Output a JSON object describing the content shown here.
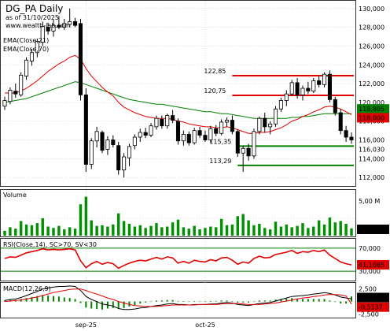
{
  "title": "DG_PA Daily",
  "as_of": "as of 31/10/2025",
  "watermark": "www.wealth-lab.com",
  "indicators": {
    "ema21": "EMA(Close,21)",
    "ema70": "EMA(Close,70)",
    "volume": "Volume",
    "rsi": "RSI(Close,14), SC>70, SV<30",
    "macd": "MACD(12,26,9)"
  },
  "colors": {
    "up": "#ffffff",
    "down": "#000000",
    "ema21": "#e00000",
    "ema70": "#008000",
    "volume": "#009000",
    "rsi": "#e00000",
    "resistance": "#e00000",
    "support": "#008000",
    "macd": "#000000",
    "macd_signal": "#e00000",
    "histogram": "#008000"
  },
  "price_axis": {
    "min": 111.6,
    "max": 130.4,
    "ticks": [
      "112,000",
      "114,000",
      "116,000",
      "118,000",
      "120,000",
      "122,000",
      "124,000",
      "126,000",
      "128,000",
      "130,000"
    ]
  },
  "level_lines": [
    {
      "label": "122,85",
      "value": 122.85,
      "color": "#e00000"
    },
    {
      "label": "120,75",
      "value": 120.75,
      "color": "#e00000"
    },
    {
      "label": "115,35",
      "value": 115.35,
      "color": "#008000"
    },
    {
      "label": "113,29",
      "value": 113.29,
      "color": "#008000"
    }
  ],
  "last_badges": {
    "close": "116,030",
    "ema70": "118,805",
    "ema21": "118,000",
    "volume": "1,05 M",
    "rsi": "41,1085",
    "macd": "0,5108",
    "signal": "-0,5137"
  },
  "volume_axis": {
    "ticks": [
      "5,00 M",
      "2,50 M"
    ]
  },
  "rsi_axis": {
    "ticks": [
      "70,000",
      "30,000"
    ]
  },
  "macd_axis": {
    "ticks": [
      "2,500",
      "-2,500"
    ]
  },
  "x_axis": {
    "labels": [
      "sep-25",
      "oct-25"
    ]
  },
  "chart_data": {
    "type": "candlestick",
    "candles": [
      {
        "o": 119.6,
        "h": 120.6,
        "l": 119.2,
        "c": 120.2,
        "v": 0.7
      },
      {
        "o": 120.1,
        "h": 121.6,
        "l": 119.8,
        "c": 121.3,
        "v": 1.2
      },
      {
        "o": 121.2,
        "h": 122.0,
        "l": 120.5,
        "c": 120.9,
        "v": 1.0
      },
      {
        "o": 120.8,
        "h": 123.2,
        "l": 120.6,
        "c": 122.9,
        "v": 2.1
      },
      {
        "o": 122.8,
        "h": 124.8,
        "l": 122.4,
        "c": 124.5,
        "v": 1.6
      },
      {
        "o": 124.4,
        "h": 125.7,
        "l": 123.9,
        "c": 125.3,
        "v": 1.5
      },
      {
        "o": 125.3,
        "h": 126.8,
        "l": 124.8,
        "c": 126.5,
        "v": 1.8
      },
      {
        "o": 126.4,
        "h": 128.6,
        "l": 126.0,
        "c": 128.1,
        "v": 2.5
      },
      {
        "o": 128.0,
        "h": 128.5,
        "l": 127.2,
        "c": 127.6,
        "v": 1.3
      },
      {
        "o": 127.6,
        "h": 128.8,
        "l": 127.0,
        "c": 128.2,
        "v": 1.1
      },
      {
        "o": 128.2,
        "h": 129.2,
        "l": 127.8,
        "c": 128.0,
        "v": 1.4
      },
      {
        "o": 128.0,
        "h": 128.9,
        "l": 127.7,
        "c": 128.4,
        "v": 0.9
      },
      {
        "o": 128.3,
        "h": 130.0,
        "l": 128.0,
        "c": 128.6,
        "v": 1.2
      },
      {
        "o": 128.6,
        "h": 129.0,
        "l": 128.0,
        "c": 128.2,
        "v": 1.0
      },
      {
        "o": 128.4,
        "h": 128.9,
        "l": 120.2,
        "c": 120.8,
        "v": 4.5
      },
      {
        "o": 120.8,
        "h": 121.5,
        "l": 112.6,
        "c": 113.4,
        "v": 5.6
      },
      {
        "o": 113.4,
        "h": 116.2,
        "l": 112.9,
        "c": 115.9,
        "v": 2.2
      },
      {
        "o": 115.9,
        "h": 117.4,
        "l": 115.2,
        "c": 116.9,
        "v": 1.4
      },
      {
        "o": 116.8,
        "h": 117.0,
        "l": 114.6,
        "c": 114.9,
        "v": 1.5
      },
      {
        "o": 115.0,
        "h": 116.4,
        "l": 114.4,
        "c": 116.0,
        "v": 1.3
      },
      {
        "o": 116.0,
        "h": 116.5,
        "l": 115.2,
        "c": 115.5,
        "v": 1.6
      },
      {
        "o": 115.4,
        "h": 115.8,
        "l": 112.3,
        "c": 112.8,
        "v": 3.2
      },
      {
        "o": 112.8,
        "h": 114.6,
        "l": 112.0,
        "c": 114.2,
        "v": 2.1
      },
      {
        "o": 114.1,
        "h": 115.6,
        "l": 113.2,
        "c": 115.3,
        "v": 1.7
      },
      {
        "o": 115.4,
        "h": 116.6,
        "l": 115.0,
        "c": 116.3,
        "v": 1.3
      },
      {
        "o": 116.3,
        "h": 117.2,
        "l": 115.8,
        "c": 116.8,
        "v": 1.5
      },
      {
        "o": 116.8,
        "h": 117.3,
        "l": 116.2,
        "c": 116.5,
        "v": 1.1
      },
      {
        "o": 116.5,
        "h": 117.8,
        "l": 116.3,
        "c": 117.5,
        "v": 1.4
      },
      {
        "o": 117.4,
        "h": 118.6,
        "l": 117.1,
        "c": 118.3,
        "v": 1.8
      },
      {
        "o": 118.2,
        "h": 118.6,
        "l": 117.2,
        "c": 117.5,
        "v": 1.2
      },
      {
        "o": 117.5,
        "h": 118.8,
        "l": 117.2,
        "c": 118.6,
        "v": 1.3
      },
      {
        "o": 118.6,
        "h": 119.2,
        "l": 117.8,
        "c": 118.1,
        "v": 1.9
      },
      {
        "o": 118.0,
        "h": 118.3,
        "l": 115.5,
        "c": 115.9,
        "v": 2.3
      },
      {
        "o": 115.9,
        "h": 117.0,
        "l": 115.4,
        "c": 116.6,
        "v": 1.2
      },
      {
        "o": 116.6,
        "h": 116.9,
        "l": 115.4,
        "c": 115.7,
        "v": 1.0
      },
      {
        "o": 115.7,
        "h": 117.3,
        "l": 115.5,
        "c": 117.0,
        "v": 1.4
      },
      {
        "o": 117.0,
        "h": 117.4,
        "l": 116.2,
        "c": 116.5,
        "v": 0.9
      },
      {
        "o": 116.5,
        "h": 117.0,
        "l": 115.8,
        "c": 116.0,
        "v": 1.1
      },
      {
        "o": 116.0,
        "h": 117.5,
        "l": 115.7,
        "c": 117.2,
        "v": 1.3
      },
      {
        "o": 117.2,
        "h": 117.6,
        "l": 116.4,
        "c": 116.7,
        "v": 1.2
      },
      {
        "o": 116.7,
        "h": 118.2,
        "l": 116.5,
        "c": 117.9,
        "v": 2.4
      },
      {
        "o": 117.9,
        "h": 118.4,
        "l": 117.4,
        "c": 118.1,
        "v": 1.5
      },
      {
        "o": 118.1,
        "h": 118.6,
        "l": 116.6,
        "c": 116.9,
        "v": 1.6
      },
      {
        "o": 116.9,
        "h": 117.1,
        "l": 114.2,
        "c": 114.6,
        "v": 2.8
      },
      {
        "o": 114.6,
        "h": 115.4,
        "l": 112.6,
        "c": 115.1,
        "v": 3.1
      },
      {
        "o": 115.1,
        "h": 115.6,
        "l": 113.8,
        "c": 114.3,
        "v": 2.2
      },
      {
        "o": 114.3,
        "h": 117.2,
        "l": 114.0,
        "c": 116.9,
        "v": 1.5
      },
      {
        "o": 116.9,
        "h": 118.5,
        "l": 116.6,
        "c": 118.3,
        "v": 1.7
      },
      {
        "o": 118.3,
        "h": 118.9,
        "l": 116.8,
        "c": 117.4,
        "v": 1.1
      },
      {
        "o": 117.4,
        "h": 118.0,
        "l": 116.6,
        "c": 117.7,
        "v": 0.9
      },
      {
        "o": 117.7,
        "h": 119.6,
        "l": 117.4,
        "c": 119.3,
        "v": 2.0
      },
      {
        "o": 119.3,
        "h": 120.5,
        "l": 119.0,
        "c": 120.2,
        "v": 1.3
      },
      {
        "o": 120.2,
        "h": 121.3,
        "l": 119.6,
        "c": 120.9,
        "v": 1.6
      },
      {
        "o": 120.9,
        "h": 122.4,
        "l": 120.7,
        "c": 122.1,
        "v": 1.2
      },
      {
        "o": 122.1,
        "h": 122.6,
        "l": 120.4,
        "c": 120.8,
        "v": 1.4
      },
      {
        "o": 120.8,
        "h": 121.8,
        "l": 120.2,
        "c": 121.5,
        "v": 1.8
      },
      {
        "o": 121.5,
        "h": 122.2,
        "l": 120.9,
        "c": 121.2,
        "v": 1.1
      },
      {
        "o": 121.2,
        "h": 122.6,
        "l": 121.0,
        "c": 122.3,
        "v": 1.3
      },
      {
        "o": 122.3,
        "h": 122.8,
        "l": 121.6,
        "c": 121.9,
        "v": 2.2
      },
      {
        "o": 121.9,
        "h": 123.2,
        "l": 121.6,
        "c": 123.0,
        "v": 1.6
      },
      {
        "o": 123.0,
        "h": 123.4,
        "l": 120.0,
        "c": 120.3,
        "v": 2.6
      },
      {
        "o": 120.3,
        "h": 120.6,
        "l": 118.6,
        "c": 118.9,
        "v": 1.9
      },
      {
        "o": 118.9,
        "h": 119.3,
        "l": 116.6,
        "c": 117.0,
        "v": 2.1
      },
      {
        "o": 117.0,
        "h": 117.5,
        "l": 115.8,
        "c": 116.3,
        "v": 1.7
      },
      {
        "o": 116.3,
        "h": 116.8,
        "l": 115.6,
        "c": 116.0,
        "v": 1.05
      }
    ],
    "ema21": [
      121.0,
      121.0,
      121.0,
      121.2,
      121.5,
      121.9,
      122.3,
      122.8,
      123.3,
      123.7,
      124.1,
      124.4,
      124.8,
      125.0,
      124.6,
      123.6,
      122.8,
      122.2,
      121.6,
      121.1,
      120.7,
      120.0,
      119.5,
      119.2,
      118.9,
      118.7,
      118.5,
      118.4,
      118.3,
      118.3,
      118.3,
      118.2,
      118.0,
      117.9,
      117.7,
      117.6,
      117.5,
      117.4,
      117.4,
      117.3,
      117.3,
      117.4,
      117.3,
      117.1,
      116.9,
      116.7,
      116.7,
      116.8,
      116.8,
      116.9,
      117.1,
      117.3,
      117.6,
      118.0,
      118.2,
      118.5,
      118.7,
      119.0,
      119.2,
      119.5,
      119.6,
      119.5,
      119.3,
      119.0,
      118.7
    ],
    "ema70": [
      120.0,
      120.1,
      120.2,
      120.3,
      120.4,
      120.6,
      120.8,
      121.0,
      121.2,
      121.4,
      121.6,
      121.8,
      122.0,
      122.2,
      122.1,
      121.9,
      121.7,
      121.5,
      121.3,
      121.1,
      120.9,
      120.7,
      120.5,
      120.3,
      120.2,
      120.1,
      120.0,
      119.9,
      119.8,
      119.8,
      119.7,
      119.6,
      119.5,
      119.4,
      119.3,
      119.2,
      119.1,
      119.0,
      119.0,
      118.9,
      118.8,
      118.8,
      118.7,
      118.6,
      118.5,
      118.4,
      118.3,
      118.3,
      118.3,
      118.3,
      118.3,
      118.3,
      118.3,
      118.4,
      118.4,
      118.5,
      118.5,
      118.6,
      118.7,
      118.8,
      118.8,
      118.8,
      118.8,
      118.8,
      118.8
    ],
    "rsi": [
      52,
      55,
      54,
      58,
      62,
      64,
      66,
      69,
      67,
      68,
      67,
      68,
      69,
      67,
      48,
      36,
      43,
      47,
      42,
      45,
      43,
      35,
      40,
      44,
      47,
      49,
      48,
      51,
      54,
      51,
      55,
      53,
      44,
      47,
      44,
      49,
      47,
      46,
      50,
      48,
      53,
      54,
      49,
      42,
      46,
      44,
      52,
      56,
      53,
      54,
      59,
      61,
      63,
      66,
      61,
      64,
      63,
      66,
      64,
      67,
      58,
      52,
      46,
      43,
      41
    ],
    "macd": [
      0.2,
      0.4,
      0.5,
      0.8,
      1.2,
      1.6,
      2.0,
      2.5,
      2.7,
      2.9,
      3.0,
      3.0,
      3.1,
      3.0,
      2.2,
      1.0,
      0.4,
      0.0,
      -0.5,
      -0.7,
      -0.9,
      -1.4,
      -1.6,
      -1.6,
      -1.5,
      -1.3,
      -1.2,
      -1.0,
      -0.8,
      -0.7,
      -0.5,
      -0.4,
      -0.6,
      -0.6,
      -0.7,
      -0.6,
      -0.6,
      -0.6,
      -0.5,
      -0.5,
      -0.3,
      -0.2,
      -0.3,
      -0.6,
      -0.7,
      -0.8,
      -0.6,
      -0.4,
      -0.3,
      -0.2,
      0.1,
      0.4,
      0.7,
      1.0,
      1.1,
      1.2,
      1.3,
      1.5,
      1.6,
      1.8,
      1.6,
      1.3,
      0.9,
      0.7,
      0.51
    ],
    "signal": [
      0.0,
      0.1,
      0.2,
      0.3,
      0.5,
      0.7,
      0.9,
      1.2,
      1.5,
      1.8,
      2.0,
      2.2,
      2.4,
      2.5,
      2.5,
      2.2,
      1.8,
      1.5,
      1.1,
      0.7,
      0.4,
      0.0,
      -0.3,
      -0.6,
      -0.8,
      -0.9,
      -1.0,
      -1.0,
      -1.0,
      -0.9,
      -0.8,
      -0.7,
      -0.7,
      -0.7,
      -0.7,
      -0.7,
      -0.6,
      -0.6,
      -0.6,
      -0.6,
      -0.5,
      -0.4,
      -0.4,
      -0.4,
      -0.5,
      -0.6,
      -0.6,
      -0.6,
      -0.5,
      -0.4,
      -0.3,
      -0.1,
      0.1,
      0.3,
      0.5,
      0.7,
      0.8,
      1.0,
      1.1,
      1.3,
      1.4,
      1.4,
      1.3,
      1.1,
      -0.51
    ],
    "macd_range": [
      -2.9,
      3.4
    ],
    "volume_max": 6.0,
    "rsi_range": [
      15,
      85
    ],
    "x_label_positions": [
      {
        "label": "sep-25",
        "index": 15
      },
      {
        "label": "oct-25",
        "index": 37
      }
    ]
  }
}
